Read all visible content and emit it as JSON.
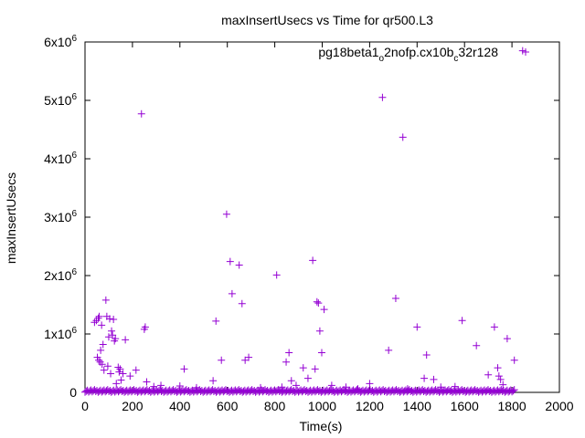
{
  "chart_data": {
    "type": "scatter",
    "title": "maxInsertUsecs vs Time for qr500.L3",
    "xlabel": "Time(s)",
    "ylabel": "maxInsertUsecs",
    "xlim": [
      0,
      2000
    ],
    "ylim": [
      0,
      6000000
    ],
    "x_ticks": [
      0,
      200,
      400,
      600,
      800,
      1000,
      1200,
      1400,
      1600,
      1800,
      2000
    ],
    "y_ticks": [
      {
        "value": 0,
        "mantissa": "0",
        "exp": ""
      },
      {
        "value": 1000000,
        "mantissa": "1x10",
        "exp": "6"
      },
      {
        "value": 2000000,
        "mantissa": "2x10",
        "exp": "6"
      },
      {
        "value": 3000000,
        "mantissa": "3x10",
        "exp": "6"
      },
      {
        "value": 4000000,
        "mantissa": "4x10",
        "exp": "6"
      },
      {
        "value": 5000000,
        "mantissa": "5x10",
        "exp": "6"
      },
      {
        "value": 6000000,
        "mantissa": "6x10",
        "exp": "6"
      }
    ],
    "grid": false,
    "legend_position": "top-right",
    "series": [
      {
        "name": "pg18beta1_o2nofp.cx10b_c32r128",
        "legend_parts": [
          {
            "text": "pg18beta1",
            "sub": false
          },
          {
            "text": "o",
            "sub": true
          },
          {
            "text": "2nofp.cx10b",
            "sub": false
          },
          {
            "text": "c",
            "sub": true
          },
          {
            "text": "32r128",
            "sub": false
          }
        ],
        "color": "#9400d3",
        "points": [
          [
            40,
            1200000
          ],
          [
            48,
            1230000
          ],
          [
            52,
            600000
          ],
          [
            56,
            1270000
          ],
          [
            58,
            550000
          ],
          [
            60,
            1300000
          ],
          [
            64,
            520000
          ],
          [
            66,
            720000
          ],
          [
            70,
            1150000
          ],
          [
            72,
            480000
          ],
          [
            76,
            820000
          ],
          [
            80,
            380000
          ],
          [
            88,
            1580000
          ],
          [
            92,
            1300000
          ],
          [
            96,
            450000
          ],
          [
            100,
            950000
          ],
          [
            104,
            1260000
          ],
          [
            108,
            320000
          ],
          [
            112,
            1050000
          ],
          [
            116,
            980000
          ],
          [
            120,
            1250000
          ],
          [
            124,
            880000
          ],
          [
            128,
            920000
          ],
          [
            132,
            150000
          ],
          [
            140,
            430000
          ],
          [
            144,
            350000
          ],
          [
            148,
            400000
          ],
          [
            152,
            210000
          ],
          [
            160,
            320000
          ],
          [
            170,
            900000
          ],
          [
            190,
            280000
          ],
          [
            215,
            380000
          ],
          [
            238,
            4770000
          ],
          [
            250,
            1080000
          ],
          [
            254,
            1120000
          ],
          [
            260,
            180000
          ],
          [
            290,
            100000
          ],
          [
            320,
            120000
          ],
          [
            400,
            110000
          ],
          [
            418,
            400000
          ],
          [
            470,
            80000
          ],
          [
            540,
            200000
          ],
          [
            552,
            1220000
          ],
          [
            575,
            550000
          ],
          [
            597,
            3050000
          ],
          [
            612,
            2240000
          ],
          [
            620,
            1690000
          ],
          [
            650,
            2180000
          ],
          [
            662,
            1520000
          ],
          [
            675,
            550000
          ],
          [
            690,
            600000
          ],
          [
            740,
            80000
          ],
          [
            808,
            2010000
          ],
          [
            830,
            90000
          ],
          [
            848,
            520000
          ],
          [
            860,
            680000
          ],
          [
            870,
            200000
          ],
          [
            890,
            120000
          ],
          [
            920,
            420000
          ],
          [
            940,
            240000
          ],
          [
            960,
            2260000
          ],
          [
            970,
            400000
          ],
          [
            978,
            1550000
          ],
          [
            984,
            1530000
          ],
          [
            990,
            1050000
          ],
          [
            998,
            680000
          ],
          [
            1008,
            1420000
          ],
          [
            1040,
            120000
          ],
          [
            1100,
            90000
          ],
          [
            1150,
            60000
          ],
          [
            1200,
            150000
          ],
          [
            1254,
            5050000
          ],
          [
            1280,
            720000
          ],
          [
            1310,
            1610000
          ],
          [
            1340,
            4370000
          ],
          [
            1360,
            60000
          ],
          [
            1400,
            1120000
          ],
          [
            1430,
            240000
          ],
          [
            1440,
            640000
          ],
          [
            1470,
            220000
          ],
          [
            1500,
            90000
          ],
          [
            1560,
            100000
          ],
          [
            1590,
            1230000
          ],
          [
            1650,
            800000
          ],
          [
            1700,
            300000
          ],
          [
            1726,
            1120000
          ],
          [
            1740,
            420000
          ],
          [
            1745,
            280000
          ],
          [
            1752,
            220000
          ],
          [
            1762,
            130000
          ],
          [
            1780,
            920000
          ],
          [
            1810,
            550000
          ],
          [
            1845,
            5850000
          ]
        ]
      }
    ]
  }
}
